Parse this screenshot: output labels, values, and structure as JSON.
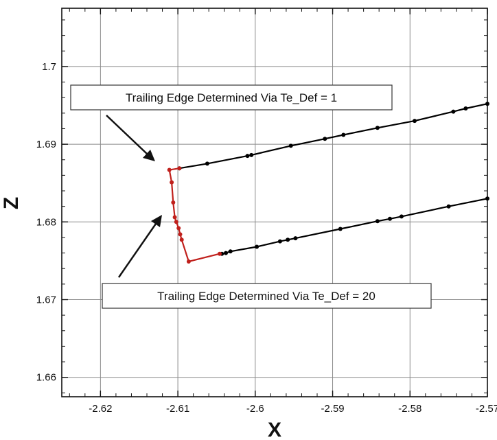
{
  "chart_data": {
    "type": "line",
    "xlabel": "X",
    "ylabel": "Z",
    "xlim": [
      -2.625,
      -2.57
    ],
    "ylim": [
      1.6575,
      1.7075
    ],
    "x_ticks": [
      -2.62,
      -2.61,
      -2.6,
      -2.59,
      -2.58,
      -2.57
    ],
    "x_tick_labels": [
      "-2.62",
      "-2.61",
      "-2.6",
      "-2.59",
      "-2.58",
      "-2.57"
    ],
    "y_ticks": [
      1.66,
      1.67,
      1.68,
      1.69,
      1.7
    ],
    "y_tick_labels": [
      "1.66",
      "1.67",
      "1.68",
      "1.69",
      "1.7"
    ],
    "grid": true,
    "series": [
      {
        "color": "#000000",
        "points": [
          [
            -2.6098,
            1.6869
          ],
          [
            -2.6062,
            1.6875
          ],
          [
            -2.601,
            1.6885
          ],
          [
            -2.6005,
            1.6886
          ],
          [
            -2.5954,
            1.6898
          ],
          [
            -2.591,
            1.6907
          ],
          [
            -2.5886,
            1.6912
          ],
          [
            -2.5842,
            1.6921
          ],
          [
            -2.5794,
            1.693
          ],
          [
            -2.5744,
            1.6942
          ],
          [
            -2.5728,
            1.6946
          ],
          [
            -2.57,
            1.6952
          ]
        ]
      },
      {
        "color": "#000000",
        "points": [
          [
            -2.6043,
            1.6759
          ],
          [
            -2.6038,
            1.676
          ],
          [
            -2.6032,
            1.6762
          ],
          [
            -2.5998,
            1.6768
          ],
          [
            -2.5968,
            1.6775
          ],
          [
            -2.5958,
            1.6777
          ],
          [
            -2.5948,
            1.6779
          ],
          [
            -2.589,
            1.6791
          ],
          [
            -2.5842,
            1.6801
          ],
          [
            -2.5826,
            1.6804
          ],
          [
            -2.5811,
            1.6807
          ],
          [
            -2.575,
            1.682
          ],
          [
            -2.57,
            1.683
          ]
        ]
      },
      {
        "color": "#c0201c",
        "points": [
          [
            -2.6046,
            1.6759
          ],
          [
            -2.6086,
            1.6749
          ],
          [
            -2.6095,
            1.6777
          ],
          [
            -2.6097,
            1.6784
          ],
          [
            -2.6099,
            1.6792
          ],
          [
            -2.6102,
            1.68
          ],
          [
            -2.6104,
            1.6806
          ],
          [
            -2.6106,
            1.6825
          ],
          [
            -2.6108,
            1.6851
          ],
          [
            -2.6111,
            1.6867
          ],
          [
            -2.6098,
            1.6869
          ]
        ]
      }
    ],
    "annotations": [
      {
        "text": "Trailing Edge Determined Via Te_Def = 1",
        "arrow_to": [
          -2.6112,
          1.6866
        ]
      },
      {
        "text": "Trailing Edge Determined Via Te_Def = 20",
        "arrow_to": [
          -2.6105,
          1.68
        ]
      }
    ]
  }
}
